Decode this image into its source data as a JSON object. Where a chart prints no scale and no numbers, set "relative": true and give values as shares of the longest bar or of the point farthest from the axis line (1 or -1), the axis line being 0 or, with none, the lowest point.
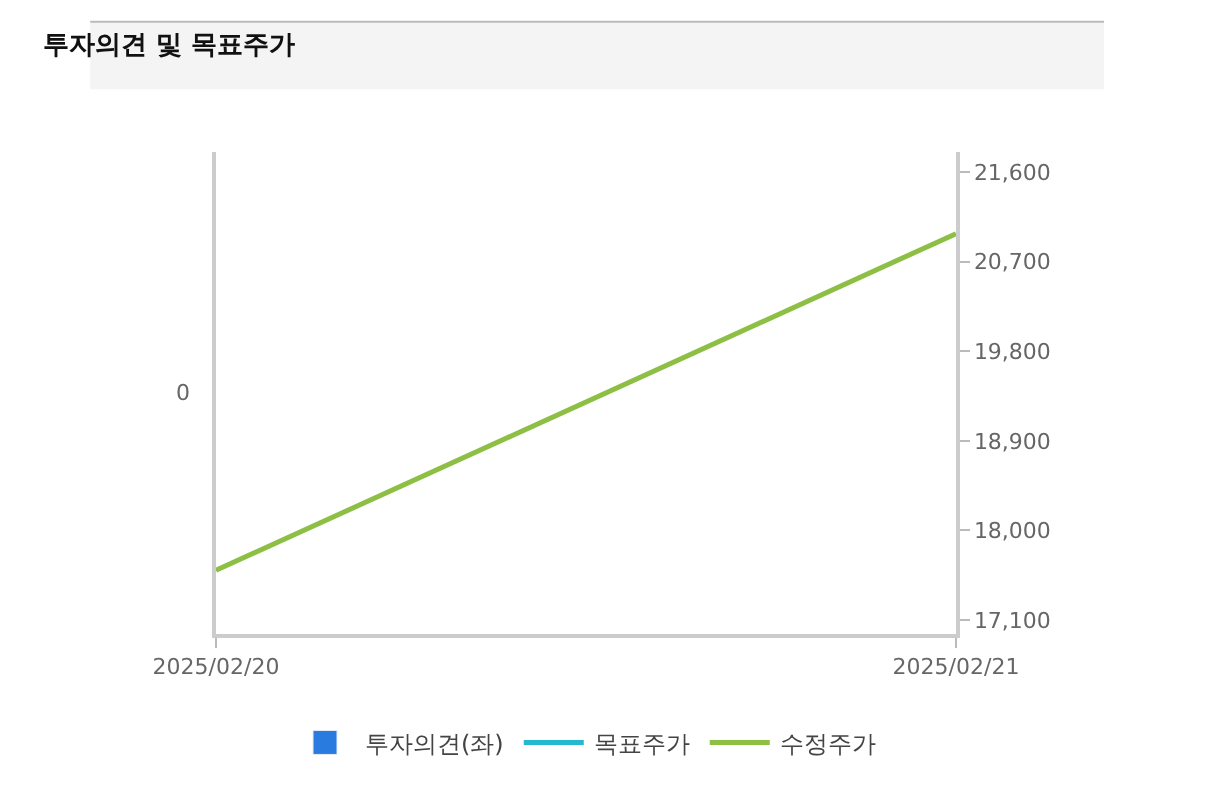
{
  "chart_data": {
    "type": "line",
    "title": "투자의견 및 목표주가",
    "x": [
      "2025-02-20",
      "2025-02-21"
    ],
    "xlim": [
      "2025-02-20",
      "2025-02-21"
    ],
    "xticks": [
      {
        "value": "2025-02-20",
        "label": "2025/02/20"
      },
      {
        "value": "2025-02-21",
        "label": "2025/02/21"
      }
    ],
    "series": [
      {
        "name": "투자의견(좌)",
        "type": "bar",
        "color": "#2a7be0",
        "values": [
          null,
          null
        ],
        "axis": "y"
      },
      {
        "name": "목표주가",
        "type": "line",
        "color": "#26b8d0",
        "values": [
          null,
          null
        ],
        "axis": "y2"
      },
      {
        "name": "수정주가",
        "color": "#8cbf44",
        "values": [
          17600,
          20980
        ],
        "axis": "y2"
      }
    ],
    "relative": true,
    "annotations": [
      "0"
    ],
    "y2lim": [
      16960,
      21800
    ],
    "y2ticks": [
      {
        "value": 17100,
        "label": "17,100"
      },
      {
        "value": 18000,
        "label": "18,000"
      },
      {
        "value": 18900,
        "label": "18,900"
      },
      {
        "value": 19800,
        "label": "19,800"
      },
      {
        "value": 20700,
        "label": "20,700"
      },
      {
        "value": 21600,
        "label": "21,600"
      }
    ],
    "legend": "bottom",
    "marker": "none",
    "line_style": "solid"
  }
}
